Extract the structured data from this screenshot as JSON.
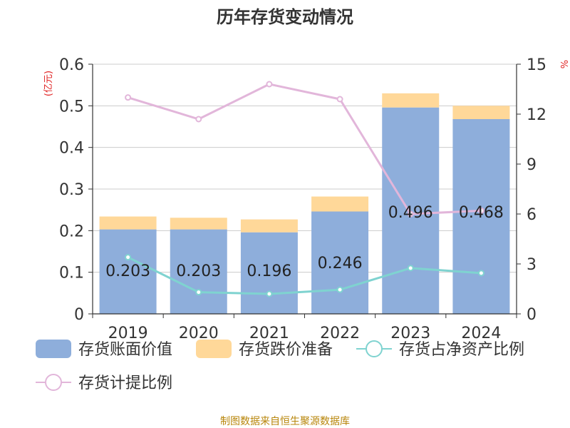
{
  "title": "历年存货变动情况",
  "left_unit": "(亿元)",
  "right_unit": "%",
  "source": "制图数据来自恒生聚源数据库",
  "colors": {
    "book_value": "#8EAEDB",
    "reserve": "#FFD899",
    "net_asset_ratio": "#7FD3D0",
    "provision_ratio": "#E2B6DA",
    "axis": "#333333",
    "grid": "#cccccc",
    "unit_red": "#E02020",
    "source": "#B8860B"
  },
  "chart_data": {
    "type": "bar",
    "categories": [
      "2019",
      "2020",
      "2021",
      "2022",
      "2023",
      "2024"
    ],
    "left_axis": {
      "ylim": [
        0,
        0.6
      ],
      "ticks": [
        "0",
        "0.1",
        "0.2",
        "0.3",
        "0.4",
        "0.5",
        "0.6"
      ]
    },
    "right_axis": {
      "ylim": [
        0,
        15
      ],
      "ticks": [
        "0",
        "3",
        "6",
        "9",
        "12",
        "15"
      ]
    },
    "bar_series": [
      {
        "name": "存货账面价值",
        "values": [
          0.203,
          0.203,
          0.196,
          0.246,
          0.496,
          0.468
        ],
        "labels": [
          "0.203",
          "0.203",
          "0.196",
          "0.246",
          "0.496",
          "0.468"
        ]
      },
      {
        "name": "存货跌价准备",
        "values": [
          0.031,
          0.028,
          0.031,
          0.036,
          0.034,
          0.032
        ]
      }
    ],
    "line_series": [
      {
        "name": "存货占净资产比例",
        "axis": "right",
        "values": [
          3.4,
          1.3,
          1.2,
          1.45,
          2.75,
          2.45
        ]
      },
      {
        "name": "存货计提比例",
        "axis": "right",
        "values": [
          13.0,
          11.7,
          13.8,
          12.9,
          6.0,
          6.2
        ]
      }
    ],
    "legend": [
      {
        "name": "存货账面价值",
        "kind": "bar"
      },
      {
        "name": "存货跌价准备",
        "kind": "bar"
      },
      {
        "name": "存货占净资产比例",
        "kind": "line"
      },
      {
        "name": "存货计提比例",
        "kind": "line"
      }
    ]
  }
}
